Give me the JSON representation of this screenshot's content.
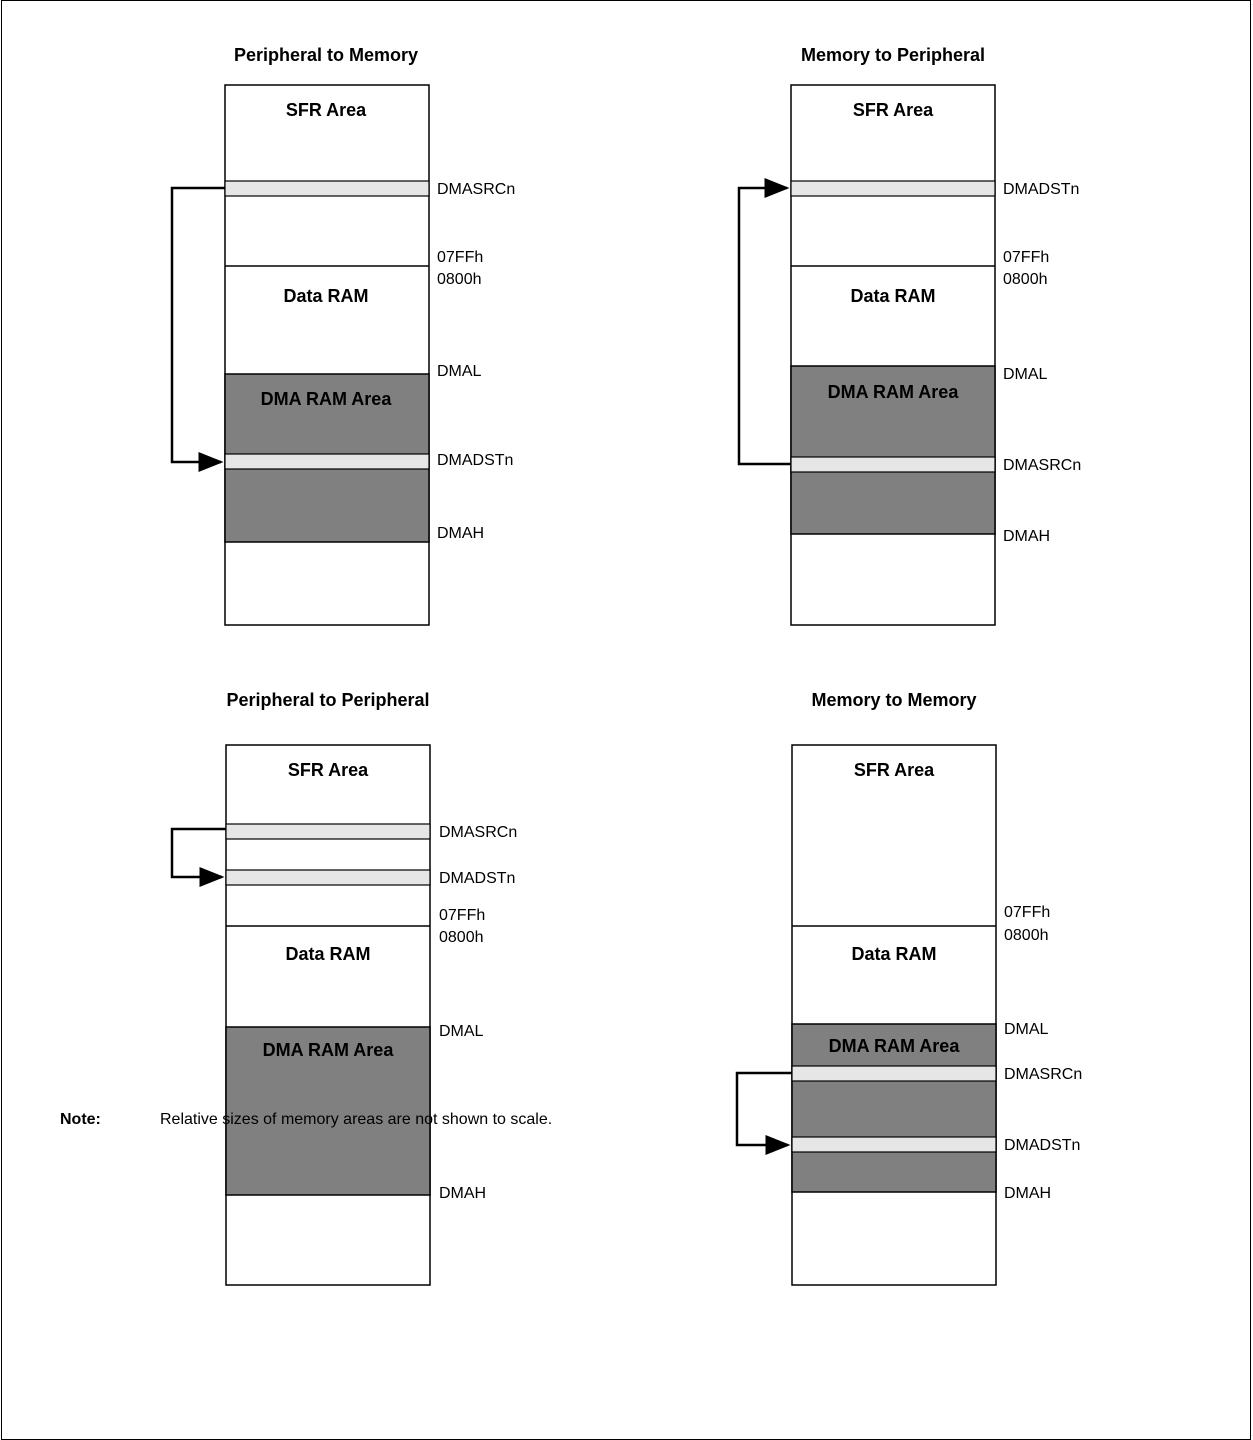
{
  "panels": [
    {
      "title": "Peripheral to Memory",
      "sfr_label": "SFR Area",
      "data_ram_label": "Data RAM",
      "dma_ram_label": "DMA RAM Area",
      "addr_labels": [
        "DMASRCn",
        "07FFh",
        "0800h",
        "DMAL",
        "DMADSTn",
        "DMAH"
      ]
    },
    {
      "title": "Memory to Peripheral",
      "sfr_label": "SFR Area",
      "data_ram_label": "Data RAM",
      "dma_ram_label": "DMA RAM Area",
      "addr_labels": [
        "DMADSTn",
        "07FFh",
        "0800h",
        "DMAL",
        "DMASRCn",
        "DMAH"
      ]
    },
    {
      "title": "Peripheral to Peripheral",
      "sfr_label": "SFR Area",
      "data_ram_label": "Data RAM",
      "dma_ram_label": "DMA RAM Area",
      "addr_labels": [
        "DMASRCn",
        "DMADSTn",
        "07FFh",
        "0800h",
        "DMAL",
        "DMAH"
      ]
    },
    {
      "title": "Memory to Memory",
      "sfr_label": "SFR Area",
      "data_ram_label": "Data RAM",
      "dma_ram_label": "DMA RAM Area",
      "addr_labels": [
        "07FFh",
        "0800h",
        "DMAL",
        "DMASRCn",
        "DMADSTn",
        "DMAH"
      ]
    }
  ],
  "note": {
    "label": "Note:",
    "text": "Relative sizes of memory areas are not shown to scale."
  },
  "colors": {
    "dma_fill": "#808080",
    "pointer_fill": "#e6e6e6",
    "line": "#000000"
  }
}
